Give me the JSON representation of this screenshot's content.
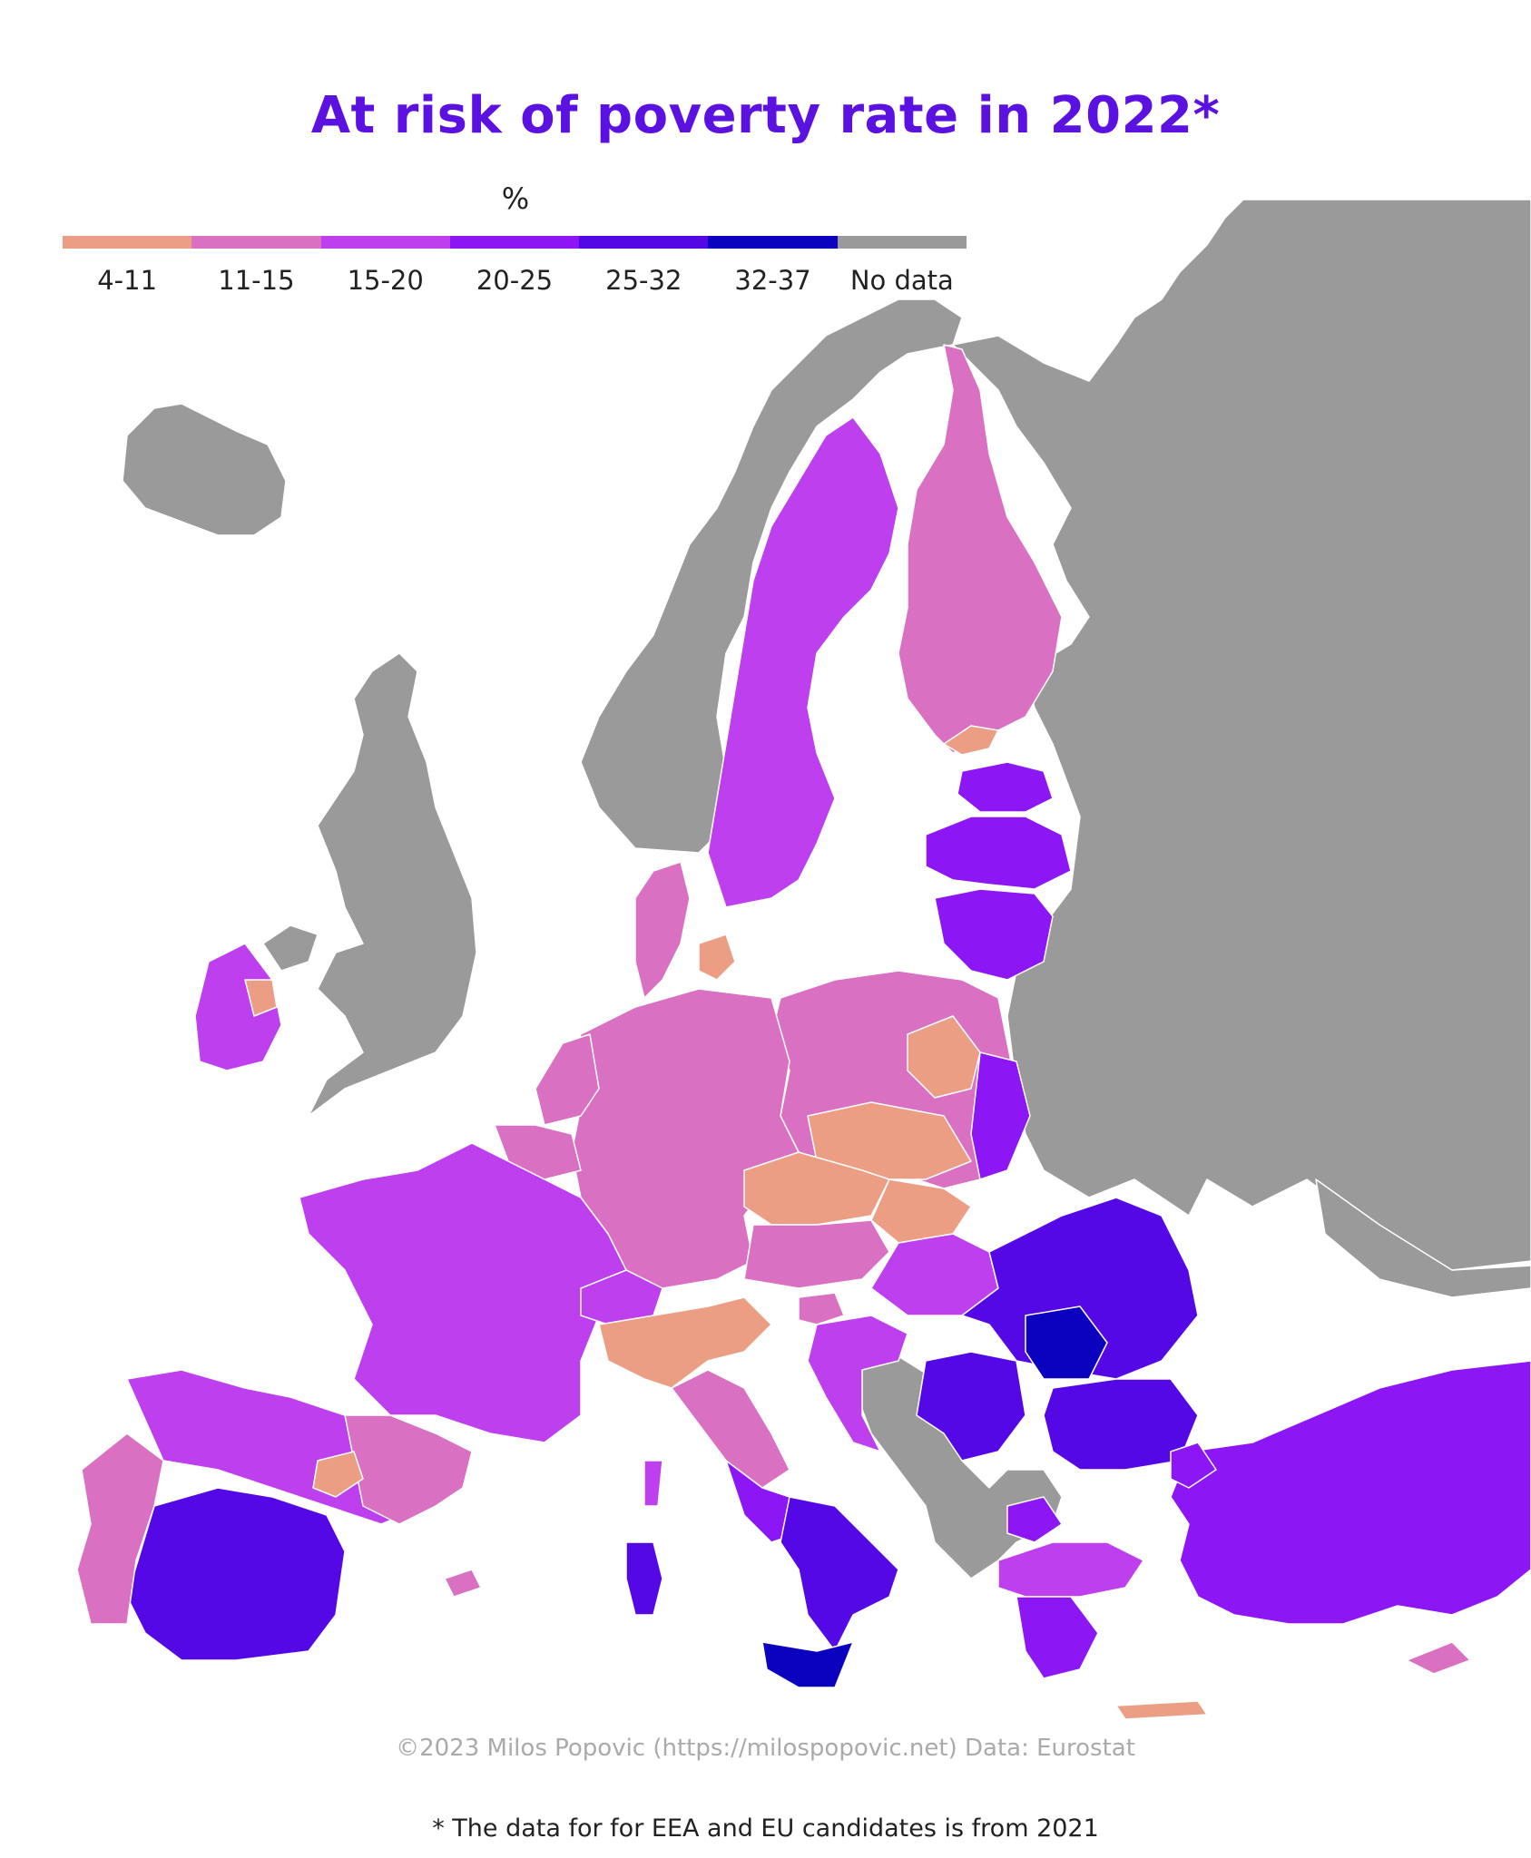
{
  "title": "At risk of poverty rate in 2022*",
  "legend": {
    "unit": "%",
    "classes": [
      {
        "label": "4-11",
        "color": "#ec9e85"
      },
      {
        "label": "11-15",
        "color": "#da70c1"
      },
      {
        "label": "15-20",
        "color": "#be3fee"
      },
      {
        "label": "20-25",
        "color": "#8c16f4"
      },
      {
        "label": "25-32",
        "color": "#5508e6"
      },
      {
        "label": "32-37",
        "color": "#0b02bf"
      },
      {
        "label": "No data",
        "color": "#9a9a9a"
      }
    ]
  },
  "colors": {
    "no_data": "#9a9a9a",
    "sea": "#ffffff",
    "border": "#ffffff"
  },
  "credit": "©2023 Milos Popovic (https://milospopovic.net) Data: Eurostat",
  "footnote": "* The data for for EEA and EU candidates is from 2021"
}
